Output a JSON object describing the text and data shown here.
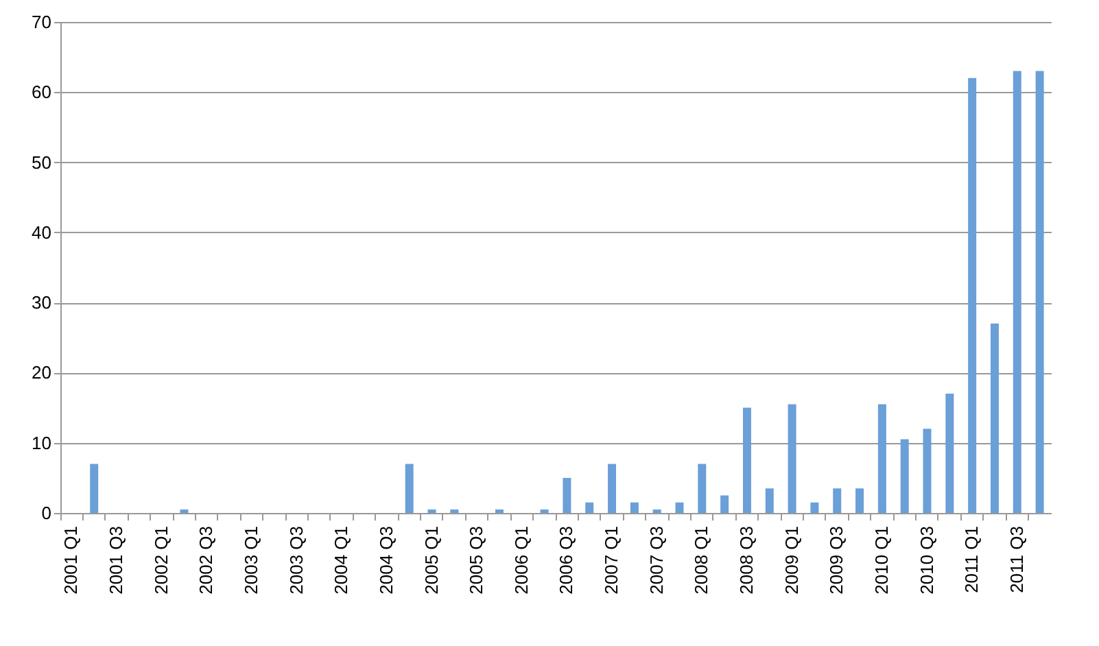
{
  "chart_data": {
    "type": "bar",
    "categories": [
      "2001 Q1",
      null,
      "2001 Q3",
      null,
      "2002 Q1",
      null,
      "2002 Q3",
      null,
      "2003 Q1",
      null,
      "2003 Q3",
      null,
      "2004 Q1",
      null,
      "2004 Q3",
      null,
      "2005 Q1",
      null,
      "2005 Q3",
      null,
      "2006 Q1",
      null,
      "2006 Q3",
      null,
      "2007 Q1",
      null,
      "2007 Q3",
      null,
      "2008 Q1",
      null,
      "2008 Q3",
      null,
      "2009 Q1",
      null,
      "2009 Q3",
      null,
      "2010 Q1",
      null,
      "2010 Q3",
      null,
      "2011 Q1",
      null,
      "2011 Q3",
      null
    ],
    "values": [
      0,
      7,
      0,
      0,
      0,
      0.5,
      0,
      0,
      0,
      0,
      0,
      0,
      0,
      0,
      0,
      7,
      0.5,
      0.5,
      0,
      0.5,
      0,
      0.5,
      5,
      1.5,
      7,
      1.5,
      0.5,
      1.5,
      7,
      2.5,
      15,
      3.5,
      15.5,
      1.5,
      3.5,
      3.5,
      15.5,
      10.5,
      12,
      17,
      62,
      27,
      63,
      63
    ],
    "color": "#6a9fd8",
    "ylim": [
      0,
      70
    ],
    "yticks": [
      0,
      10,
      20,
      30,
      40,
      50,
      60,
      70
    ],
    "grid": "y"
  }
}
